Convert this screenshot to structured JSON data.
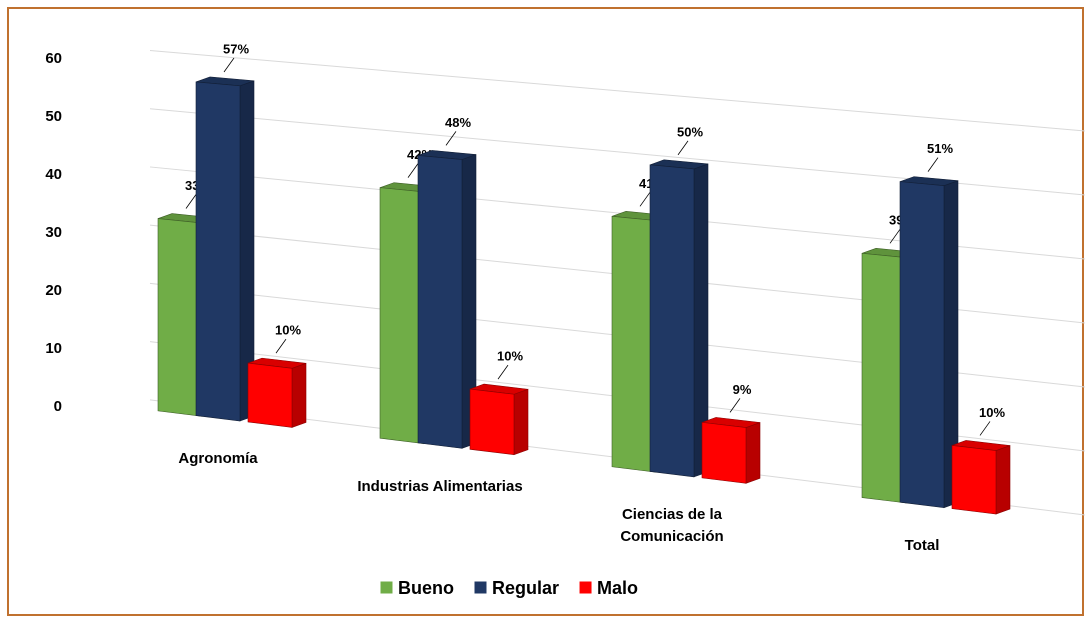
{
  "chart_data": {
    "type": "bar3d",
    "categories": [
      "Agronomía",
      "Industrias Alimentarias",
      "Ciencias de la Comunicación",
      "Total"
    ],
    "series": [
      {
        "name": "Bueno",
        "color": "#70ad47",
        "values": [
          33,
          42,
          41,
          39
        ],
        "value_labels": [
          "33%",
          "42%",
          "41%",
          "39%"
        ]
      },
      {
        "name": "Regular",
        "color": "#203864",
        "values": [
          57,
          48,
          50,
          51
        ],
        "value_labels": [
          "57%",
          "48%",
          "50%",
          "51%"
        ]
      },
      {
        "name": "Malo",
        "color": "#ff0000",
        "values": [
          10,
          10,
          9,
          10
        ],
        "value_labels": [
          "10%",
          "10%",
          "9%",
          "10%"
        ]
      }
    ],
    "ylim": [
      0,
      60
    ],
    "yticks": [
      0,
      10,
      20,
      30,
      40,
      50,
      60
    ],
    "grid": true,
    "legend": "bottom"
  }
}
